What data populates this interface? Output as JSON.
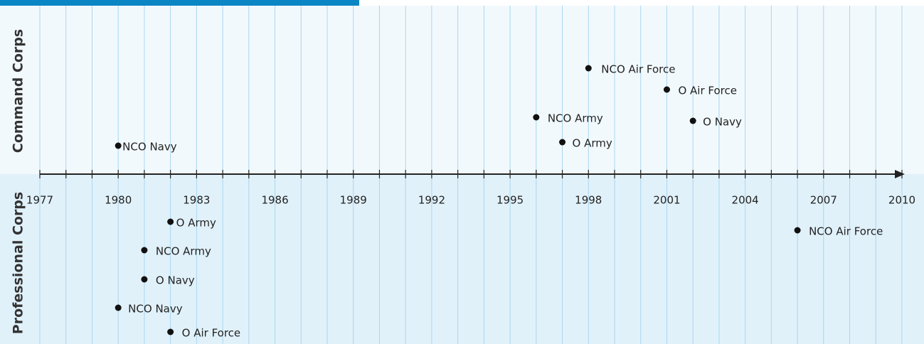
{
  "chart_data": {
    "type": "timeline",
    "xlim": [
      1977,
      2010
    ],
    "xticks": [
      1977,
      1980,
      1983,
      1986,
      1989,
      1992,
      1995,
      1998,
      2001,
      2004,
      2007,
      2010
    ],
    "xminorticks": [
      1977,
      1978,
      1979,
      1980,
      1981,
      1982,
      1983,
      1984,
      1985,
      1986,
      1987,
      1988,
      1989,
      1990,
      1991,
      1992,
      1993,
      1994,
      1995,
      1996,
      1997,
      1998,
      1999,
      2000,
      2001,
      2002,
      2003,
      2004,
      2005,
      2006,
      2007,
      2008,
      2009,
      2010
    ],
    "grid": true,
    "series": [
      {
        "name": "Command Corps",
        "color": "#111111",
        "labels": [
          "NCO Navy",
          "NCO Air Force",
          "O Air Force",
          "NCO Army",
          "O Navy",
          "O Army"
        ],
        "x": [
          1980,
          1998,
          2001,
          1996,
          2002,
          1997
        ]
      },
      {
        "name": "Professional Corps",
        "color": "#111111",
        "labels": [
          "O Army",
          "NCO Army",
          "O Navy",
          "NCO Navy",
          "O Air Force",
          "NCO Air Force"
        ],
        "x": [
          1982,
          1981,
          1981,
          1980,
          1982,
          2006
        ]
      }
    ]
  }
}
